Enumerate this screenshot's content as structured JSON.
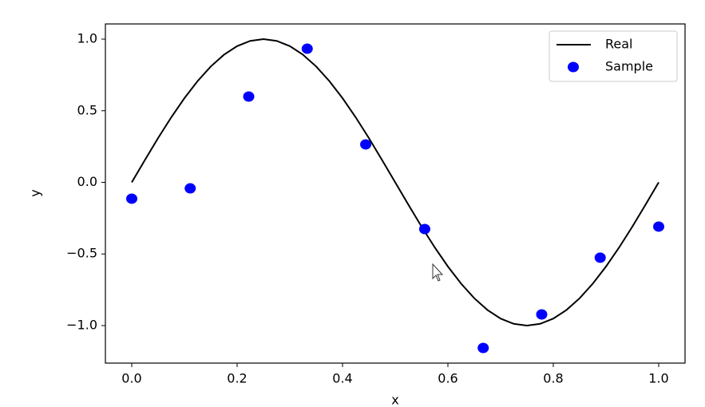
{
  "chart_data": {
    "type": "line",
    "x_label": "x",
    "y_label": "y",
    "series": [
      {
        "name": "Real",
        "color": "#000000",
        "style": "line",
        "x": [
          0,
          0.025,
          0.05,
          0.075,
          0.1,
          0.125,
          0.15,
          0.175,
          0.2,
          0.225,
          0.25,
          0.275,
          0.3,
          0.325,
          0.35,
          0.375,
          0.4,
          0.425,
          0.45,
          0.475,
          0.5,
          0.525,
          0.55,
          0.575,
          0.6,
          0.625,
          0.65,
          0.675,
          0.7,
          0.725,
          0.75,
          0.775,
          0.8,
          0.825,
          0.85,
          0.875,
          0.9,
          0.925,
          0.95,
          0.975,
          1
        ],
        "values": [
          0,
          0.156,
          0.309,
          0.454,
          0.588,
          0.707,
          0.809,
          0.891,
          0.951,
          0.988,
          1,
          0.988,
          0.951,
          0.891,
          0.809,
          0.707,
          0.588,
          0.454,
          0.309,
          0.156,
          0,
          -0.156,
          -0.309,
          -0.454,
          -0.588,
          -0.707,
          -0.809,
          -0.891,
          -0.951,
          -0.988,
          -1,
          -0.988,
          -0.951,
          -0.891,
          -0.809,
          -0.707,
          -0.588,
          -0.454,
          -0.309,
          -0.156,
          0
        ]
      },
      {
        "name": "Sample",
        "color": "#0000ff",
        "style": "markers",
        "x": [
          0,
          0.111,
          0.222,
          0.333,
          0.444,
          0.556,
          0.667,
          0.778,
          0.889,
          1
        ],
        "values": [
          -0.114,
          -0.042,
          0.599,
          0.933,
          0.265,
          -0.326,
          -1.156,
          -0.922,
          -0.526,
          -0.309
        ]
      }
    ],
    "xlim": [
      -0.05,
      1.05
    ],
    "ylim": [
      -1.262,
      1.106
    ],
    "xticks": [
      {
        "value": 0,
        "label": "0.0"
      },
      0.2,
      0.4,
      0.6,
      0.8,
      {
        "value": 1,
        "label": "1.0"
      }
    ],
    "yticks": [
      {
        "value": -1,
        "label": "−1.0"
      },
      {
        "value": -0.5,
        "label": "−0.5"
      },
      {
        "value": 0,
        "label": "0.0"
      },
      0.5,
      {
        "value": 1,
        "label": "1.0"
      }
    ],
    "legend": "upper right",
    "grid": false
  }
}
